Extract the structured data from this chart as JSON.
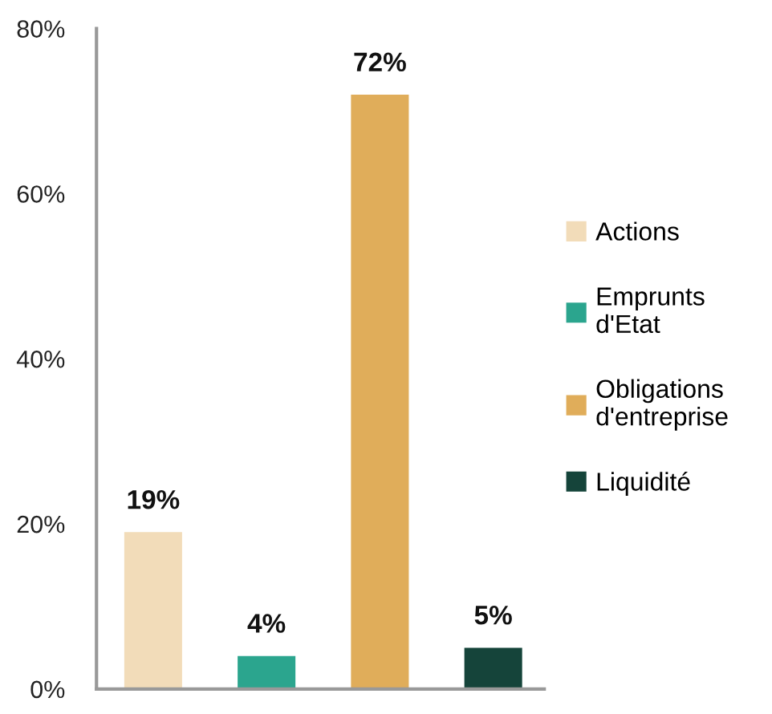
{
  "chart_data": {
    "type": "bar",
    "categories": [
      null,
      null,
      null,
      null
    ],
    "series": [
      {
        "name": "Actions",
        "color": "#f2dcb9",
        "values": [
          19,
          null,
          null,
          null
        ]
      },
      {
        "name": "Emprunts\nd'Etat",
        "color": "#2ba58e",
        "values": [
          null,
          4,
          null,
          null
        ]
      },
      {
        "name": "Obligations\nd'entreprise",
        "color": "#e0ad5a",
        "values": [
          null,
          null,
          72,
          null
        ]
      },
      {
        "name": "Liquidité",
        "color": "#15443a",
        "values": [
          null,
          null,
          null,
          5
        ]
      }
    ],
    "value_labels": [
      "19%",
      "4%",
      "72%",
      "5%"
    ],
    "ylim": [
      0,
      80
    ],
    "yticks": [
      {
        "value": 0,
        "label": "0%"
      },
      {
        "value": 20,
        "label": "20%"
      },
      {
        "value": 40,
        "label": "40%"
      },
      {
        "value": 60,
        "label": "60%"
      },
      {
        "value": 80,
        "label": "80%"
      }
    ],
    "grid": false,
    "legend": "right"
  }
}
